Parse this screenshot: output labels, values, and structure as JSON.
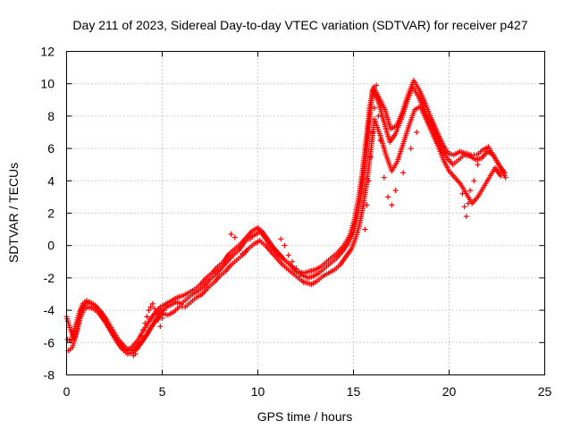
{
  "chart_data": {
    "type": "scatter",
    "title": "Day 211 of 2023, Sidereal Day-to-day VTEC variation (SDTVAR) for receiver p427",
    "xlabel": "GPS time / hours",
    "ylabel": "SDTVAR / TECUs",
    "xlim": [
      0,
      25
    ],
    "ylim": [
      -8,
      12
    ],
    "xticks": [
      0,
      5,
      10,
      15,
      20,
      25
    ],
    "yticks": [
      -8,
      -6,
      -4,
      -2,
      0,
      2,
      4,
      6,
      8,
      10,
      12
    ],
    "grid": true,
    "marker": "+",
    "color": "#ff0000",
    "series": [
      {
        "x": [
          0.0,
          0.2,
          0.4,
          0.6,
          0.8,
          1.0,
          1.2,
          1.5,
          1.8,
          2.1,
          2.4,
          2.7,
          3.0,
          3.3,
          3.6,
          3.9,
          4.2,
          4.5,
          4.8,
          5.1,
          5.4,
          5.7,
          6.0,
          6.3,
          6.6,
          6.9,
          7.2,
          7.5,
          7.8,
          8.1,
          8.4,
          8.7,
          9.0,
          9.3,
          9.6,
          9.9,
          10.2,
          10.5,
          10.8,
          11.1,
          11.4,
          11.7,
          12.0,
          12.3,
          12.6,
          12.9,
          13.2,
          13.5,
          13.8,
          14.1,
          14.4,
          14.7,
          15.0,
          15.2,
          15.4,
          15.6,
          15.8,
          16.0,
          16.3,
          16.6,
          16.9,
          17.2,
          17.5,
          17.8,
          18.1,
          18.4,
          18.7,
          19.0,
          19.3,
          19.6,
          19.9,
          20.2,
          20.5,
          20.8,
          21.1,
          21.4,
          21.7,
          22.0,
          22.3,
          22.6,
          22.9
        ],
        "y": [
          -4.4,
          -5.2,
          -5.8,
          -4.9,
          -3.9,
          -3.6,
          -3.5,
          -3.7,
          -4.1,
          -4.6,
          -5.2,
          -5.8,
          -6.2,
          -6.5,
          -6.4,
          -6.0,
          -5.5,
          -4.9,
          -4.3,
          -3.9,
          -3.7,
          -3.5,
          -3.6,
          -3.3,
          -3.0,
          -2.8,
          -2.5,
          -2.1,
          -1.8,
          -1.4,
          -1.0,
          -0.6,
          -0.3,
          0.2,
          0.5,
          0.7,
          0.9,
          0.4,
          -0.1,
          -0.5,
          -0.9,
          -1.2,
          -1.6,
          -1.8,
          -2.0,
          -1.9,
          -1.7,
          -1.4,
          -1.1,
          -0.8,
          -0.4,
          0.1,
          0.8,
          1.8,
          3.2,
          5.0,
          7.2,
          9.6,
          8.9,
          7.6,
          6.4,
          6.9,
          7.8,
          8.9,
          9.8,
          9.2,
          8.4,
          7.6,
          6.8,
          6.0,
          5.4,
          5.0,
          5.3,
          5.6,
          5.5,
          5.3,
          5.4,
          5.8,
          5.6,
          5.0,
          4.5
        ]
      },
      {
        "x": [
          0.1,
          0.3,
          0.5,
          0.7,
          0.9,
          1.1,
          1.4,
          1.7,
          2.0,
          2.3,
          2.6,
          2.9,
          3.2,
          3.5,
          3.8,
          4.1,
          4.4,
          4.7,
          5.0,
          5.3,
          5.6,
          5.9,
          6.2,
          6.5,
          6.8,
          7.1,
          7.4,
          7.7,
          8.0,
          8.3,
          8.6,
          8.9,
          9.2,
          9.5,
          9.8,
          10.1,
          10.4,
          10.7,
          11.0,
          11.3,
          11.6,
          11.9,
          12.2,
          12.5,
          12.8,
          13.1,
          13.4,
          13.7,
          14.0,
          14.3,
          14.6,
          14.9,
          15.1,
          15.3,
          15.5,
          15.7,
          15.9,
          16.1,
          16.4,
          16.7,
          17.0,
          17.3,
          17.6,
          17.9,
          18.2,
          18.5,
          18.8,
          19.1,
          19.4,
          19.7,
          20.0,
          20.3,
          20.6,
          20.9,
          21.2,
          21.5,
          21.8,
          22.1,
          22.4,
          22.7
        ],
        "y": [
          -6.5,
          -6.3,
          -5.5,
          -4.5,
          -4.0,
          -3.8,
          -3.9,
          -4.2,
          -4.7,
          -5.3,
          -5.9,
          -6.4,
          -6.7,
          -6.6,
          -6.2,
          -5.7,
          -5.1,
          -4.6,
          -4.2,
          -4.3,
          -4.1,
          -3.8,
          -3.8,
          -3.5,
          -3.2,
          -3.0,
          -2.6,
          -2.3,
          -1.9,
          -1.6,
          -1.2,
          -0.9,
          -0.6,
          -0.2,
          0.1,
          0.3,
          0.0,
          -0.4,
          -0.8,
          -1.2,
          -1.5,
          -1.8,
          -2.1,
          -2.3,
          -2.4,
          -2.2,
          -1.9,
          -1.7,
          -1.5,
          -1.2,
          -0.7,
          -0.2,
          0.4,
          1.2,
          2.4,
          3.9,
          5.8,
          7.8,
          6.8,
          5.6,
          4.6,
          5.2,
          6.3,
          7.4,
          8.4,
          8.6,
          7.8,
          7.0,
          6.2,
          5.3,
          4.6,
          4.2,
          3.8,
          3.2,
          2.6,
          3.0,
          3.6,
          4.2,
          4.8,
          4.3
        ]
      },
      {
        "x": [
          0.05,
          0.25,
          0.45,
          0.65,
          0.85,
          1.05,
          1.3,
          1.6,
          1.9,
          2.2,
          2.5,
          2.8,
          3.1,
          3.4,
          3.7,
          4.0,
          4.3,
          4.6,
          4.9,
          5.2,
          5.5,
          5.8,
          6.1,
          6.4,
          6.7,
          7.0,
          7.3,
          7.6,
          7.9,
          8.2,
          8.5,
          8.8,
          9.1,
          9.4,
          9.7,
          10.0,
          10.3,
          10.6,
          10.9,
          11.2,
          11.5,
          11.8,
          12.1,
          12.4,
          12.7,
          13.0,
          13.3,
          13.6,
          13.9,
          14.2,
          14.5,
          14.8,
          15.05,
          15.25,
          15.45,
          15.65,
          15.85,
          16.05,
          16.35,
          16.65,
          16.95,
          17.25,
          17.55,
          17.85,
          18.15,
          18.45,
          18.75,
          19.05,
          19.35,
          19.65,
          19.95,
          20.25,
          20.55,
          20.85,
          21.15,
          21.45,
          21.75,
          22.05,
          22.35,
          22.65,
          22.95
        ],
        "y": [
          -5.8,
          -5.9,
          -5.0,
          -4.2,
          -3.6,
          -3.4,
          -3.6,
          -3.9,
          -4.4,
          -5.0,
          -5.6,
          -6.1,
          -6.5,
          -6.3,
          -5.9,
          -5.3,
          -4.7,
          -4.2,
          -3.8,
          -3.6,
          -3.4,
          -3.2,
          -3.1,
          -2.9,
          -2.7,
          -2.4,
          -2.0,
          -1.7,
          -1.3,
          -1.0,
          -0.5,
          -0.2,
          0.1,
          0.5,
          0.9,
          1.1,
          0.6,
          0.1,
          -0.3,
          -0.7,
          -1.0,
          -1.3,
          -1.6,
          -1.7,
          -1.6,
          -1.5,
          -1.3,
          -1.0,
          -0.7,
          -0.4,
          0.0,
          0.6,
          1.6,
          2.8,
          4.4,
          6.4,
          8.6,
          9.8,
          9.1,
          8.4,
          7.2,
          7.4,
          8.2,
          9.3,
          10.2,
          9.6,
          8.8,
          7.9,
          7.1,
          6.3,
          5.7,
          5.6,
          5.8,
          5.7,
          5.6,
          5.6,
          5.9,
          6.1,
          5.5,
          4.9,
          4.2
        ]
      },
      {
        "x": [
          3.5,
          3.6,
          3.7,
          3.8,
          3.9,
          4.0,
          4.1,
          4.2,
          4.3,
          4.4,
          4.5,
          4.6,
          4.7,
          4.8,
          4.9,
          5.0,
          5.1,
          5.2,
          8.6,
          8.8,
          9.0,
          9.2,
          9.4,
          9.6,
          11.2,
          11.4,
          11.6,
          11.8,
          12.0,
          12.2,
          12.4,
          15.6,
          15.7,
          15.8,
          15.9,
          16.0,
          16.1,
          16.2,
          16.3,
          16.4,
          16.6,
          16.8,
          17.0,
          17.2,
          17.6,
          18.0,
          18.3,
          20.7,
          20.8,
          20.9,
          21.0,
          21.1,
          21.3,
          21.5
        ],
        "y": [
          -6.8,
          -6.7,
          -6.4,
          -6.0,
          -5.6,
          -5.2,
          -4.8,
          -4.4,
          -4.0,
          -3.8,
          -3.6,
          -3.9,
          -4.2,
          -4.6,
          -5.0,
          -4.5,
          -4.0,
          -3.7,
          0.7,
          0.5,
          0.0,
          -0.5,
          -0.3,
          0.4,
          0.4,
          0.0,
          -0.6,
          -1.0,
          -1.4,
          -1.9,
          -2.3,
          1.0,
          2.5,
          4.0,
          5.5,
          7.0,
          8.5,
          9.9,
          8.0,
          6.5,
          4.2,
          3.0,
          2.5,
          3.4,
          4.5,
          6.0,
          7.0,
          3.2,
          2.4,
          1.8,
          2.6,
          3.4,
          4.0,
          5.0
        ]
      }
    ]
  }
}
